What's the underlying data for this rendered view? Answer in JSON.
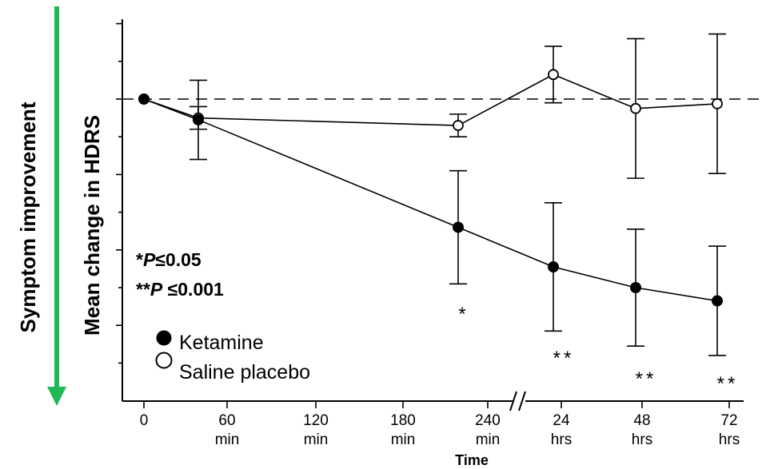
{
  "chart_data": {
    "type": "line",
    "title": "",
    "xlabel": "Time",
    "ylabel": "Mean change in HDRS",
    "y_arrow_label": "Symptom improvement",
    "y_arrow_color": "#1db954",
    "x_ticks": [
      {
        "line1": "0",
        "line2": ""
      },
      {
        "line1": "60",
        "line2": "min"
      },
      {
        "line1": "120",
        "line2": "min"
      },
      {
        "line1": "180",
        "line2": "min"
      },
      {
        "line1": "240",
        "line2": "min"
      },
      {
        "line1": "24",
        "line2": "hrs"
      },
      {
        "line1": "48",
        "line2": "hrs"
      },
      {
        "line1": "72",
        "line2": "hrs"
      }
    ],
    "x_axis_break": "//",
    "y_range": [
      -14,
      4
    ],
    "reference_line": 0,
    "series": [
      {
        "name": "Ketamine",
        "marker": "filled-circle",
        "points": [
          {
            "x": "0 min",
            "y": 0,
            "err": 0
          },
          {
            "x": "40 min",
            "y": -1.1,
            "err": 2.1
          },
          {
            "x": "230 min",
            "y": -6.8,
            "err": 3.0
          },
          {
            "x": "24 hrs",
            "y": -8.9,
            "err": 3.4
          },
          {
            "x": "48 hrs",
            "y": -10.0,
            "err": 3.1
          },
          {
            "x": "72 hrs",
            "y": -10.7,
            "err": 2.9
          }
        ]
      },
      {
        "name": "Saline placebo",
        "marker": "open-circle",
        "points": [
          {
            "x": "0 min",
            "y": 0,
            "err": 0
          },
          {
            "x": "40 min",
            "y": -1.0,
            "err": 0.6
          },
          {
            "x": "230 min",
            "y": -1.4,
            "err": 0.6
          },
          {
            "x": "24 hrs",
            "y": 1.3,
            "err": 1.5
          },
          {
            "x": "48 hrs",
            "y": -0.5,
            "err": 3.7
          },
          {
            "x": "72 hrs",
            "y": -0.25,
            "err": 3.7
          }
        ]
      }
    ],
    "significance_marks": [
      {
        "x": "230 min",
        "label": "*"
      },
      {
        "x": "24 hrs",
        "label": "**"
      },
      {
        "x": "48 hrs",
        "label": "**"
      },
      {
        "x": "72 hrs",
        "label": "**"
      }
    ],
    "significance_legend": [
      {
        "stars": "*",
        "p": "P",
        "rest": "≤0.05"
      },
      {
        "stars": "**",
        "p": "P",
        "rest": " ≤0.001"
      }
    ],
    "legend_placement": "bottom-left",
    "grid": false
  }
}
